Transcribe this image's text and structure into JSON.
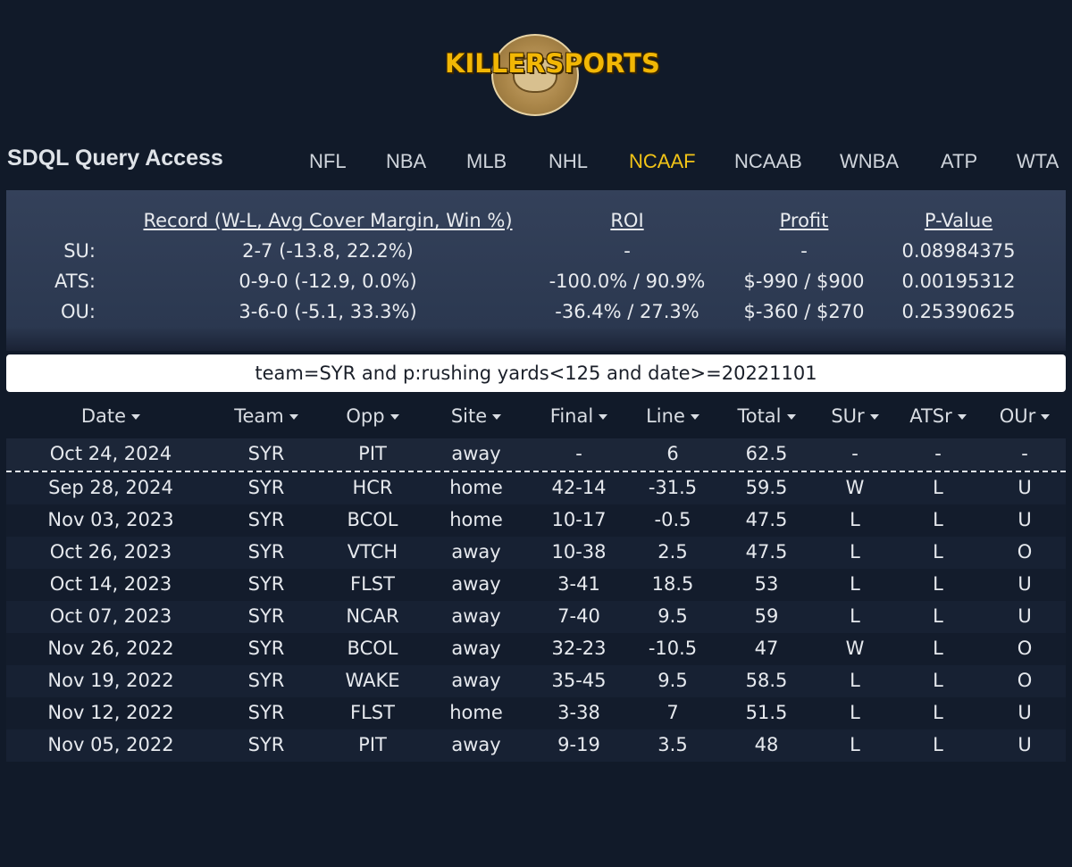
{
  "brand": {
    "logo_text": "KILLERSPORTS"
  },
  "header": {
    "title": "SDQL Query Access"
  },
  "nav": [
    "NFL",
    "NBA",
    "MLB",
    "NHL",
    "NCAAF",
    "NCAAB",
    "WNBA",
    "ATP",
    "WTA"
  ],
  "nav_active": "NCAAF",
  "summary": {
    "headers": {
      "record": "Record (W-L, Avg Cover Margin, Win %)",
      "roi": "ROI",
      "profit": "Profit",
      "pvalue": "P-Value"
    },
    "rows": [
      {
        "label": "SU:",
        "record": "2-7 (-13.8, 22.2%)",
        "roi": "-",
        "profit": "-",
        "pvalue": "0.08984375"
      },
      {
        "label": "ATS:",
        "record": "0-9-0 (-12.9, 0.0%)",
        "roi": "-100.0% / 90.9%",
        "profit": "$-990 / $900",
        "pvalue": "0.00195312"
      },
      {
        "label": "OU:",
        "record": "3-6-0 (-5.1, 33.3%)",
        "roi": "-36.4% / 27.3%",
        "profit": "$-360 / $270",
        "pvalue": "0.25390625"
      }
    ]
  },
  "query": "team=SYR and p:rushing yards<125 and date>=20221101",
  "table": {
    "columns": [
      "Date",
      "Team",
      "Opp",
      "Site",
      "Final",
      "Line",
      "Total",
      "SUr",
      "ATSr",
      "OUr"
    ],
    "upcoming": [
      "Oct 24, 2024",
      "SYR",
      "PIT",
      "away",
      "-",
      "6",
      "62.5",
      "-",
      "-",
      "-"
    ],
    "rows": [
      [
        "Sep 28, 2024",
        "SYR",
        "HCR",
        "home",
        "42-14",
        "-31.5",
        "59.5",
        "W",
        "L",
        "U"
      ],
      [
        "Nov 03, 2023",
        "SYR",
        "BCOL",
        "home",
        "10-17",
        "-0.5",
        "47.5",
        "L",
        "L",
        "U"
      ],
      [
        "Oct 26, 2023",
        "SYR",
        "VTCH",
        "away",
        "10-38",
        "2.5",
        "47.5",
        "L",
        "L",
        "O"
      ],
      [
        "Oct 14, 2023",
        "SYR",
        "FLST",
        "away",
        "3-41",
        "18.5",
        "53",
        "L",
        "L",
        "U"
      ],
      [
        "Oct 07, 2023",
        "SYR",
        "NCAR",
        "away",
        "7-40",
        "9.5",
        "59",
        "L",
        "L",
        "U"
      ],
      [
        "Nov 26, 2022",
        "SYR",
        "BCOL",
        "away",
        "32-23",
        "-10.5",
        "47",
        "W",
        "L",
        "O"
      ],
      [
        "Nov 19, 2022",
        "SYR",
        "WAKE",
        "away",
        "35-45",
        "9.5",
        "58.5",
        "L",
        "L",
        "O"
      ],
      [
        "Nov 12, 2022",
        "SYR",
        "FLST",
        "home",
        "3-38",
        "7",
        "51.5",
        "L",
        "L",
        "U"
      ],
      [
        "Nov 05, 2022",
        "SYR",
        "PIT",
        "away",
        "9-19",
        "3.5",
        "48",
        "L",
        "L",
        "U"
      ]
    ]
  },
  "colors": {
    "background": "#111a29",
    "active_nav": "#f2c417",
    "logo": "#f2b705"
  }
}
